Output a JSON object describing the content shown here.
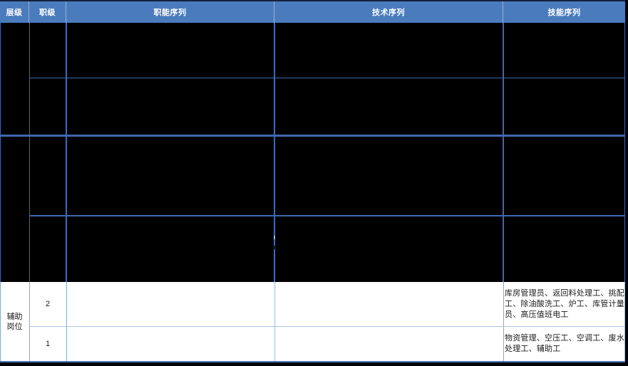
{
  "header": {
    "level": "层级",
    "rank": "职级",
    "functional": "职能序列",
    "technical": "技术序列",
    "skill": "技能序列"
  },
  "auxiliary": {
    "level": "辅助岗位",
    "rows": [
      {
        "rank": "2",
        "skills": "库房管理员、返回料处理工、挑配工、除油酸洗工、炉工、库管计量员、高压值班电工"
      },
      {
        "rank": "1",
        "skills": "物资管理、空压工、空调工、废水处理工、辅助工"
      }
    ]
  },
  "colors": {
    "header_bg": "#4a7cbd",
    "header_text": "#ffffff",
    "grid_line_dark_area": "#4068ae",
    "grid_line_light_area": "#84aacd",
    "row_divider_light": "#a9c4e0",
    "redacted_cell_bg": "#000000",
    "bottom_border": "#4f7abf"
  }
}
